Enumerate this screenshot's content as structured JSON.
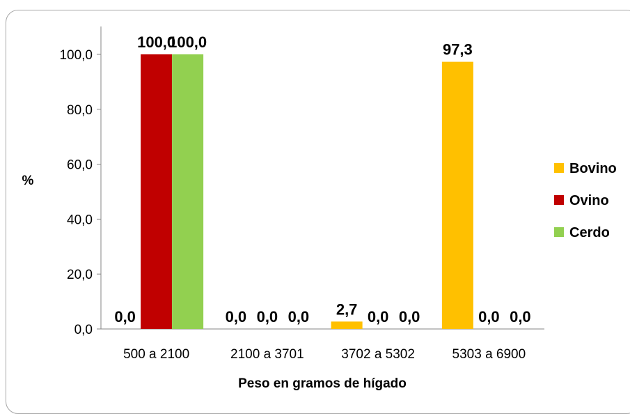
{
  "chart_data": {
    "type": "bar",
    "title": "",
    "xlabel": "Peso en gramos de hígado",
    "ylabel": "%",
    "ylim": [
      0,
      100
    ],
    "yticks": [
      "0,0",
      "20,0",
      "40,0",
      "60,0",
      "80,0",
      "100,0"
    ],
    "categories": [
      "500 a 2100",
      "2100 a 3701",
      "3702 a 5302",
      "5303 a 6900"
    ],
    "series": [
      {
        "name": "Bovino",
        "color": "#ffc000",
        "values": [
          0.0,
          0.0,
          2.7,
          97.3
        ],
        "labels": [
          "0,0",
          "0,0",
          "2,7",
          "97,3"
        ]
      },
      {
        "name": "Ovino",
        "color": "#c00000",
        "values": [
          100.0,
          0.0,
          0.0,
          0.0
        ],
        "labels": [
          "100,0",
          "0,0",
          "0,0",
          "0,0"
        ]
      },
      {
        "name": "Cerdo",
        "color": "#92d050",
        "values": [
          100.0,
          0.0,
          0.0,
          0.0
        ],
        "labels": [
          "100,0",
          "0,0",
          "0,0",
          "0,0"
        ]
      }
    ],
    "legend_position": "right",
    "grid": false
  }
}
